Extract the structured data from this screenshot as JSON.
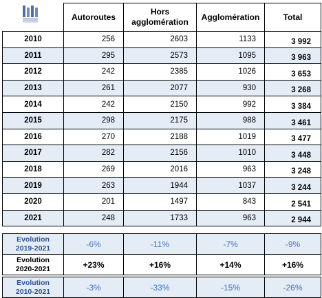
{
  "header": {
    "autoroutes": "Autoroutes",
    "hors_line1": "Hors",
    "hors_line2": "agglomération",
    "agglomeration": "Agglomération",
    "total": "Total"
  },
  "rows": [
    {
      "year": "2010",
      "autoroutes": "256",
      "hors": "2603",
      "agglo": "1133",
      "total": "3 992"
    },
    {
      "year": "2011",
      "autoroutes": "295",
      "hors": "2573",
      "agglo": "1095",
      "total": "3 963"
    },
    {
      "year": "2012",
      "autoroutes": "242",
      "hors": "2385",
      "agglo": "1026",
      "total": "3 653"
    },
    {
      "year": "2013",
      "autoroutes": "261",
      "hors": "2077",
      "agglo": "930",
      "total": "3 268"
    },
    {
      "year": "2014",
      "autoroutes": "242",
      "hors": "2150",
      "agglo": "992",
      "total": "3 384"
    },
    {
      "year": "2015",
      "autoroutes": "298",
      "hors": "2175",
      "agglo": "988",
      "total": "3 461"
    },
    {
      "year": "2016",
      "autoroutes": "270",
      "hors": "2188",
      "agglo": "1019",
      "total": "3 477"
    },
    {
      "year": "2017",
      "autoroutes": "282",
      "hors": "2156",
      "agglo": "1010",
      "total": "3 448"
    },
    {
      "year": "2018",
      "autoroutes": "269",
      "hors": "2016",
      "agglo": "963",
      "total": "3 248"
    },
    {
      "year": "2019",
      "autoroutes": "263",
      "hors": "1944",
      "agglo": "1037",
      "total": "3 244"
    },
    {
      "year": "2020",
      "autoroutes": "201",
      "hors": "1497",
      "agglo": "843",
      "total": "2 541"
    },
    {
      "year": "2021",
      "autoroutes": "248",
      "hors": "1733",
      "agglo": "963",
      "total": "2 944"
    }
  ],
  "evolution": [
    {
      "line1": "Evolution",
      "line2": "2019-2021",
      "autoroutes": "-6%",
      "hors": "-11%",
      "agglo": "-7%",
      "total": "-9%"
    },
    {
      "line1": "Evolution",
      "line2": "2020-2021",
      "autoroutes": "+23%",
      "hors": "+16%",
      "agglo": "+14%",
      "total": "+16%"
    },
    {
      "line1": "Evolution",
      "line2": "2010-2021",
      "autoroutes": "-3%",
      "hors": "-33%",
      "agglo": "-15%",
      "total": "-26%"
    }
  ],
  "colors": {
    "row_alt": "#e4ecf6",
    "evolution_text": "#4472c4",
    "logo": "#4a6fb5"
  },
  "logo_icon": "ministry-building-logo"
}
